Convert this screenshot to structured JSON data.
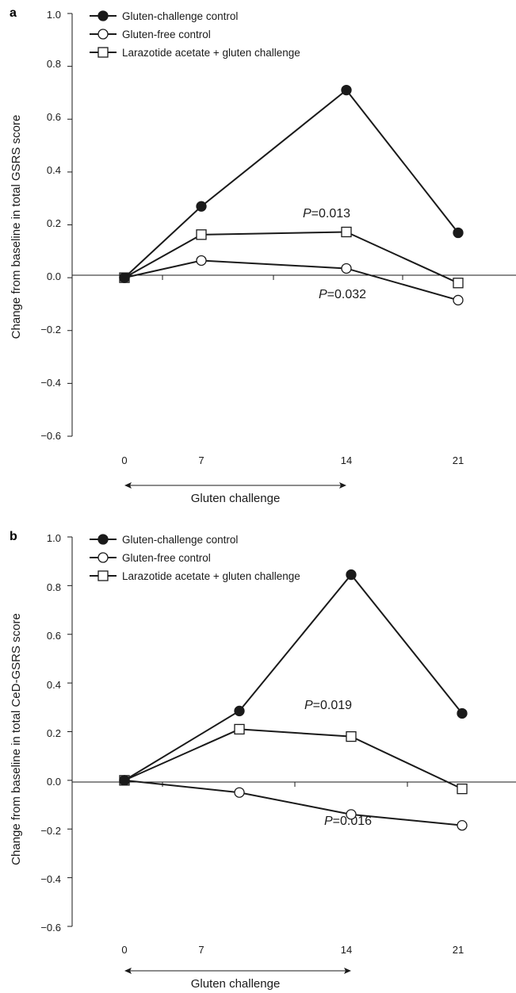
{
  "chart_data": [
    {
      "panel": "a",
      "type": "line",
      "ylabel": "Change from baseline in total GSRS score",
      "xlabel": "",
      "x": [
        0,
        7,
        14,
        21
      ],
      "xticks": [
        "0",
        "7",
        "14",
        "21"
      ],
      "ylim": [
        -0.6,
        1.0
      ],
      "yticks": [
        "1.0",
        "0.8",
        "0.6",
        "0.4",
        "0.2",
        "0.0",
        "−0.2",
        "−0.4",
        "−0.6"
      ],
      "ytick_values": [
        1.0,
        0.8,
        0.6,
        0.4,
        0.2,
        0.0,
        -0.2,
        -0.4,
        -0.6
      ],
      "arrow_label": "Gluten challenge",
      "series": [
        {
          "name": "Gluten-challenge control",
          "marker": "filled-circle",
          "values": [
            0.0,
            0.27,
            0.71,
            0.17
          ]
        },
        {
          "name": "Gluten-free control",
          "marker": "open-circle",
          "values": [
            0.0,
            0.065,
            0.035,
            -0.085
          ]
        },
        {
          "name": "Larazotide acetate + gluten challenge",
          "marker": "open-square",
          "values": [
            0.0,
            0.163,
            0.173,
            -0.02
          ]
        }
      ],
      "annotations": [
        {
          "label": "P",
          "value": "=0.013"
        },
        {
          "label": "P",
          "value": "=0.032"
        }
      ],
      "legend_position": "top-left"
    },
    {
      "panel": "b",
      "type": "line",
      "ylabel": "Change from baseline in total CeD-GSRS score",
      "xlabel": "",
      "x": [
        0,
        7,
        14,
        21
      ],
      "xticks": [
        "0",
        "7",
        "14",
        "21"
      ],
      "ylim": [
        -0.6,
        1.0
      ],
      "yticks": [
        "1.0",
        "0.8",
        "0.6",
        "0.4",
        "0.2",
        "0.0",
        "−0.2",
        "−0.4",
        "−0.6"
      ],
      "ytick_values": [
        1.0,
        0.8,
        0.6,
        0.4,
        0.2,
        0.0,
        -0.2,
        -0.4,
        -0.6
      ],
      "arrow_label": "Gluten challenge",
      "series": [
        {
          "name": "Gluten-challenge control",
          "marker": "filled-circle",
          "values": [
            0.0,
            0.285,
            0.845,
            0.275
          ]
        },
        {
          "name": "Gluten-free control",
          "marker": "open-circle",
          "values": [
            0.0,
            -0.05,
            -0.14,
            -0.185
          ]
        },
        {
          "name": "Larazotide acetate + gluten challenge",
          "marker": "open-square",
          "values": [
            0.0,
            0.21,
            0.18,
            -0.035
          ]
        }
      ],
      "annotations": [
        {
          "label": "P",
          "value": "=0.019"
        },
        {
          "label": "P",
          "value": "=0.016"
        }
      ],
      "legend_position": "top-left"
    }
  ]
}
